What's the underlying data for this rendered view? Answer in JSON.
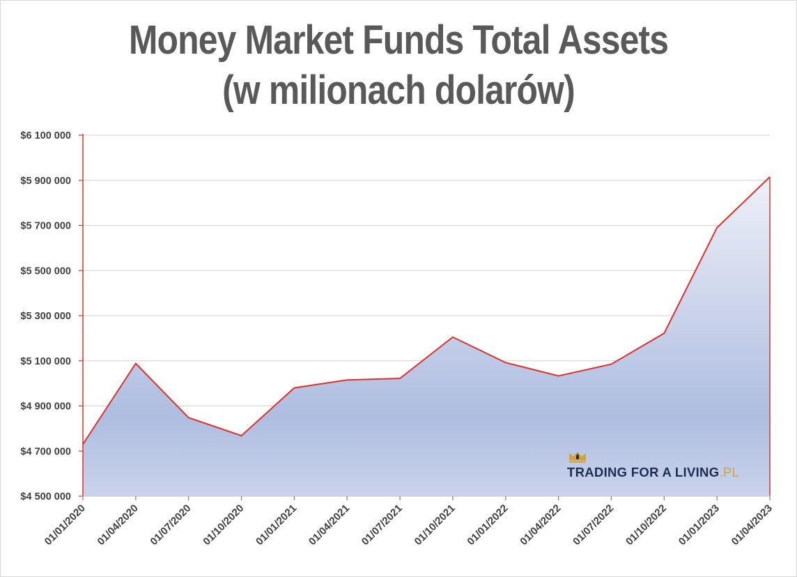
{
  "chart_data": {
    "type": "area",
    "title": "Money Market Funds Total Assets",
    "subtitle": "(w milionach dolarów)",
    "xlabel": "",
    "ylabel": "",
    "categories": [
      "01/01/2020",
      "01/04/2020",
      "01/07/2020",
      "01/10/2020",
      "01/01/2021",
      "01/04/2021",
      "01/07/2021",
      "01/10/2021",
      "01/01/2022",
      "01/04/2022",
      "01/07/2022",
      "01/10/2022",
      "01/01/2023",
      "01/04/2023"
    ],
    "series": [
      {
        "values": [
          4730000,
          5088000,
          4848000,
          4768000,
          4980000,
          5015000,
          5022000,
          5205000,
          5092000,
          5033000,
          5085000,
          5222000,
          5690000,
          5915000
        ]
      }
    ],
    "ylim": [
      4500000,
      6100000
    ],
    "yticks": [
      {
        "value": 4500000,
        "label": "$4 500 000"
      },
      {
        "value": 4700000,
        "label": "$4 700 000"
      },
      {
        "value": 4900000,
        "label": "$4 900 000"
      },
      {
        "value": 5100000,
        "label": "$5 100 000"
      },
      {
        "value": 5300000,
        "label": "$5 300 000"
      },
      {
        "value": 5500000,
        "label": "$5 500 000"
      },
      {
        "value": 5700000,
        "label": "$5 700 000"
      },
      {
        "value": 5900000,
        "label": "$5 900 000"
      },
      {
        "value": 6100000,
        "label": "$6 100 000"
      }
    ],
    "grid": true,
    "legend": "none",
    "colors": {
      "line": "#e0302a",
      "fill_top": "#eef0f8",
      "fill_mid": "#aebde0",
      "fill_bottom": "#c9d3ec",
      "grid": "#d0d0d0",
      "axis": "#e0302a"
    }
  },
  "logo": {
    "text": "TRADING FOR A LIVING",
    "suffix": ".PL",
    "icon": "crown-icon",
    "text_color": "#1f2d50",
    "accent_color": "#d4a23a"
  }
}
